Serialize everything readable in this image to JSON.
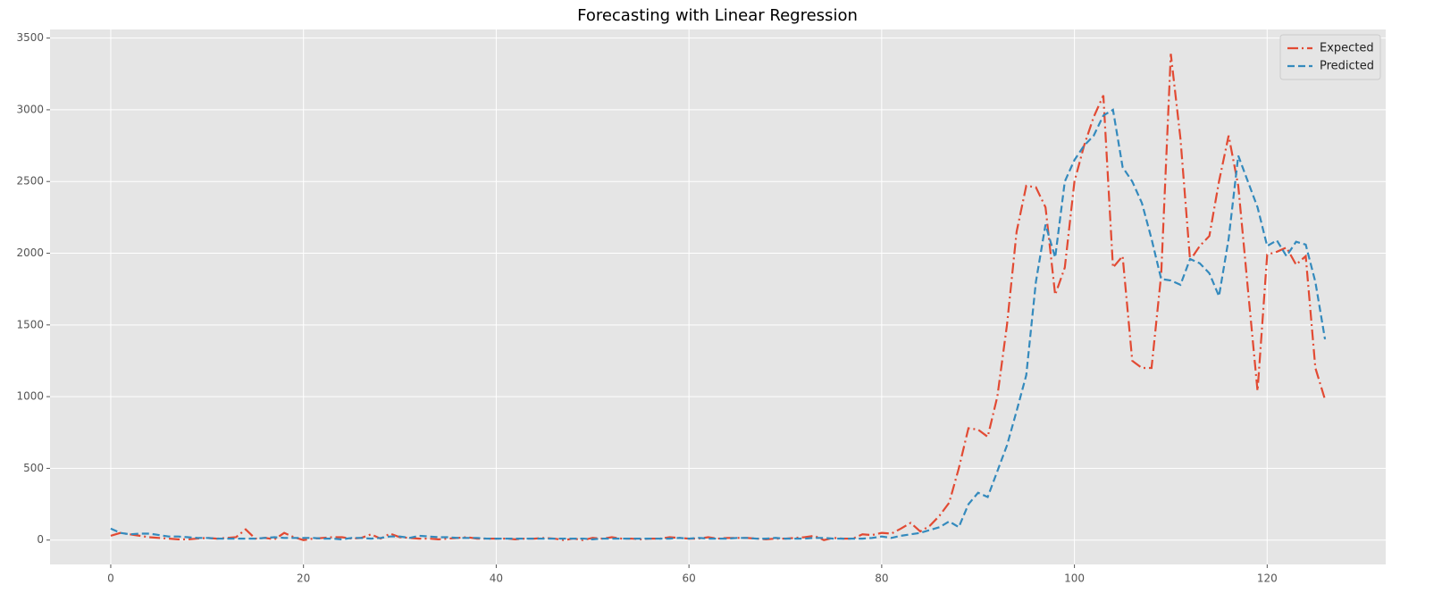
{
  "chart_data": {
    "type": "line",
    "title": "Forecasting with Linear Regression",
    "x": [
      0,
      1,
      2,
      3,
      4,
      5,
      6,
      7,
      8,
      9,
      10,
      11,
      12,
      13,
      14,
      15,
      16,
      17,
      18,
      19,
      20,
      21,
      22,
      23,
      24,
      25,
      26,
      27,
      28,
      29,
      30,
      31,
      32,
      33,
      34,
      35,
      36,
      37,
      38,
      39,
      40,
      41,
      42,
      43,
      44,
      45,
      46,
      47,
      48,
      49,
      50,
      51,
      52,
      53,
      54,
      55,
      56,
      57,
      58,
      59,
      60,
      61,
      62,
      63,
      64,
      65,
      66,
      67,
      68,
      69,
      70,
      71,
      72,
      73,
      74,
      75,
      76,
      77,
      78,
      79,
      80,
      81,
      82,
      83,
      84,
      85,
      86,
      87,
      88,
      89,
      90,
      91,
      92,
      93,
      94,
      95,
      96,
      97,
      98,
      99,
      100,
      101,
      102,
      103,
      104,
      105,
      106,
      107,
      108,
      109,
      110,
      111,
      112,
      113,
      114,
      115,
      116,
      117,
      118,
      119,
      120,
      121,
      122,
      123,
      124,
      125,
      126
    ],
    "series": [
      {
        "name": "Expected",
        "color": "#E24A33",
        "linestyle": "dashdot",
        "values": [
          30,
          50,
          40,
          30,
          20,
          15,
          10,
          5,
          5,
          10,
          15,
          10,
          15,
          20,
          75,
          10,
          15,
          5,
          50,
          20,
          0,
          10,
          15,
          20,
          20,
          10,
          15,
          40,
          10,
          45,
          20,
          15,
          10,
          10,
          5,
          10,
          15,
          20,
          10,
          10,
          10,
          10,
          5,
          10,
          10,
          15,
          10,
          0,
          10,
          0,
          15,
          10,
          20,
          10,
          10,
          5,
          10,
          10,
          20,
          15,
          10,
          10,
          20,
          10,
          15,
          15,
          15,
          10,
          5,
          10,
          10,
          15,
          20,
          30,
          0,
          15,
          10,
          10,
          40,
          35,
          50,
          45,
          80,
          120,
          60,
          100,
          170,
          260,
          500,
          780,
          770,
          720,
          1000,
          1500,
          2150,
          2470,
          2460,
          2320,
          1710,
          1900,
          2500,
          2750,
          2950,
          3100,
          1900,
          1980,
          1250,
          1200,
          1200,
          1850,
          3390,
          2800,
          1950,
          2050,
          2120,
          2500,
          2820,
          2470,
          1750,
          1040,
          1990,
          2010,
          2040,
          1920,
          1980,
          1200,
          980
        ]
      },
      {
        "name": "Predicted",
        "color": "#348ABD",
        "linestyle": "dashed",
        "values": [
          80,
          50,
          40,
          45,
          45,
          35,
          25,
          25,
          20,
          15,
          15,
          10,
          10,
          10,
          10,
          10,
          15,
          20,
          15,
          15,
          15,
          15,
          10,
          10,
          5,
          15,
          15,
          10,
          15,
          25,
          25,
          15,
          30,
          25,
          20,
          20,
          15,
          15,
          15,
          10,
          10,
          10,
          10,
          10,
          10,
          10,
          10,
          10,
          10,
          10,
          5,
          10,
          10,
          10,
          10,
          10,
          10,
          10,
          10,
          15,
          10,
          15,
          10,
          10,
          10,
          15,
          15,
          10,
          10,
          15,
          10,
          10,
          10,
          15,
          15,
          10,
          10,
          10,
          10,
          15,
          25,
          15,
          30,
          40,
          50,
          70,
          90,
          130,
          90,
          250,
          330,
          300,
          480,
          660,
          900,
          1150,
          1800,
          2200,
          1970,
          2500,
          2650,
          2750,
          2820,
          2960,
          3000,
          2600,
          2500,
          2350,
          2100,
          1820,
          1810,
          1780,
          1960,
          1930,
          1860,
          1700,
          2100,
          2680,
          2500,
          2320,
          2050,
          2090,
          1980,
          2080,
          2060,
          1800,
          1400
        ]
      }
    ],
    "xlim": [
      -6.3,
      132.3
    ],
    "ylim": [
      -170,
      3560
    ],
    "xticks": [
      0,
      20,
      40,
      60,
      80,
      100,
      120
    ],
    "yticks": [
      0,
      500,
      1000,
      1500,
      2000,
      2500,
      3000,
      3500
    ],
    "grid": true,
    "legend": "upper right"
  }
}
